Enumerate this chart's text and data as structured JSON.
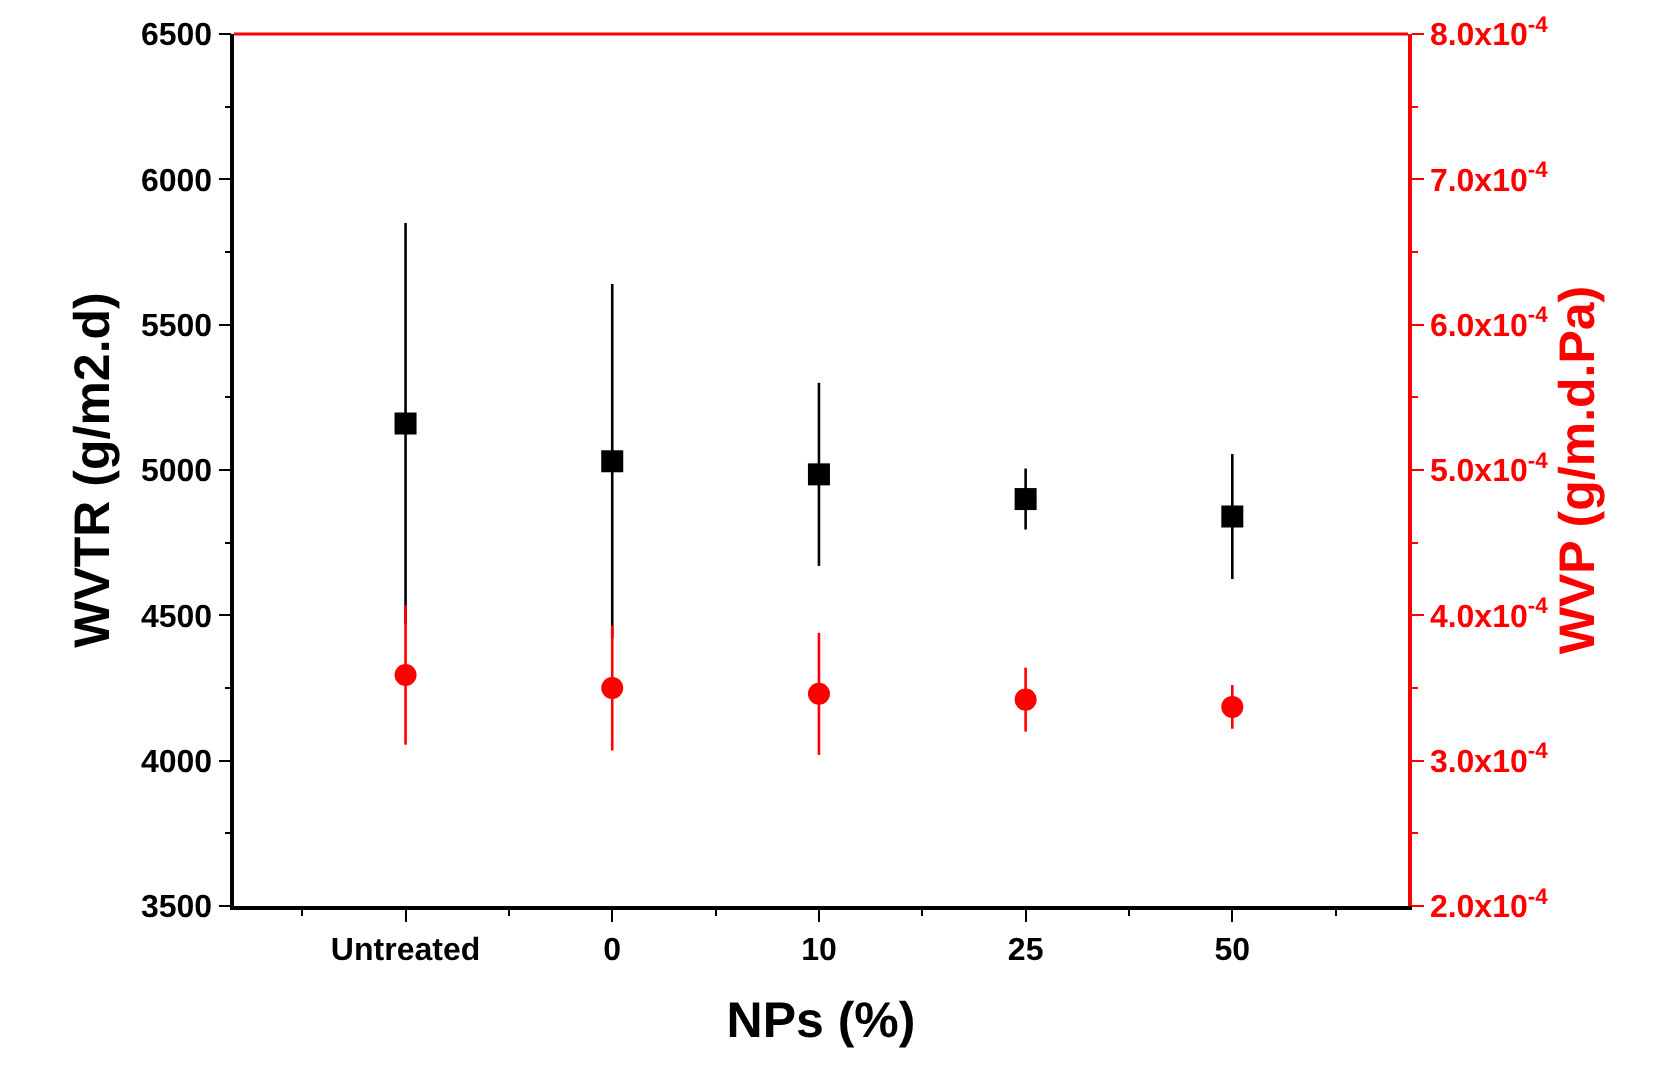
{
  "chart_data": {
    "type": "scatter",
    "xlabel": "NPs (%)",
    "ylabel": "WVTR (g/m2.d)",
    "y2label": "WVP (g/m.d.Pa)",
    "categories": [
      "Untreated",
      "0",
      "10",
      "25",
      "50"
    ],
    "series": [
      {
        "color": "#000000",
        "marker": "square",
        "values": [
          5160,
          5030,
          4985,
          4900,
          4840
        ],
        "errors": [
          690,
          610,
          315,
          105,
          215
        ]
      },
      {
        "color": "#ff0000",
        "marker": "circle",
        "axis": "y2",
        "values": [
          0.000359,
          0.00035,
          0.000346,
          0.000342,
          0.000337
        ],
        "errors": [
          4.8e-05,
          4.3e-05,
          4.2e-05,
          2.2e-05,
          1.5e-05
        ]
      }
    ],
    "ylim": [
      3500,
      6500
    ],
    "yticks": [
      3500,
      4000,
      4500,
      5000,
      5500,
      6000,
      6500
    ],
    "y2lim": [
      0.0002,
      0.0008
    ],
    "y2ticks": [
      {
        "value": 0.0002,
        "label": "2.0x10$^{-4}$"
      },
      {
        "value": 0.0003,
        "label": "3.0x10$^{-4}$"
      },
      {
        "value": 0.0004,
        "label": "4.0x10$^{-4}$"
      },
      {
        "value": 0.0005,
        "label": "5.0x10$^{-4}$"
      },
      {
        "value": 0.0006,
        "label": "6.0x10$^{-4}$"
      },
      {
        "value": 0.0007,
        "label": "7.0x10$^{-4}$"
      },
      {
        "value": 0.0008,
        "label": "8.0x10$^{-4}$"
      }
    ]
  }
}
